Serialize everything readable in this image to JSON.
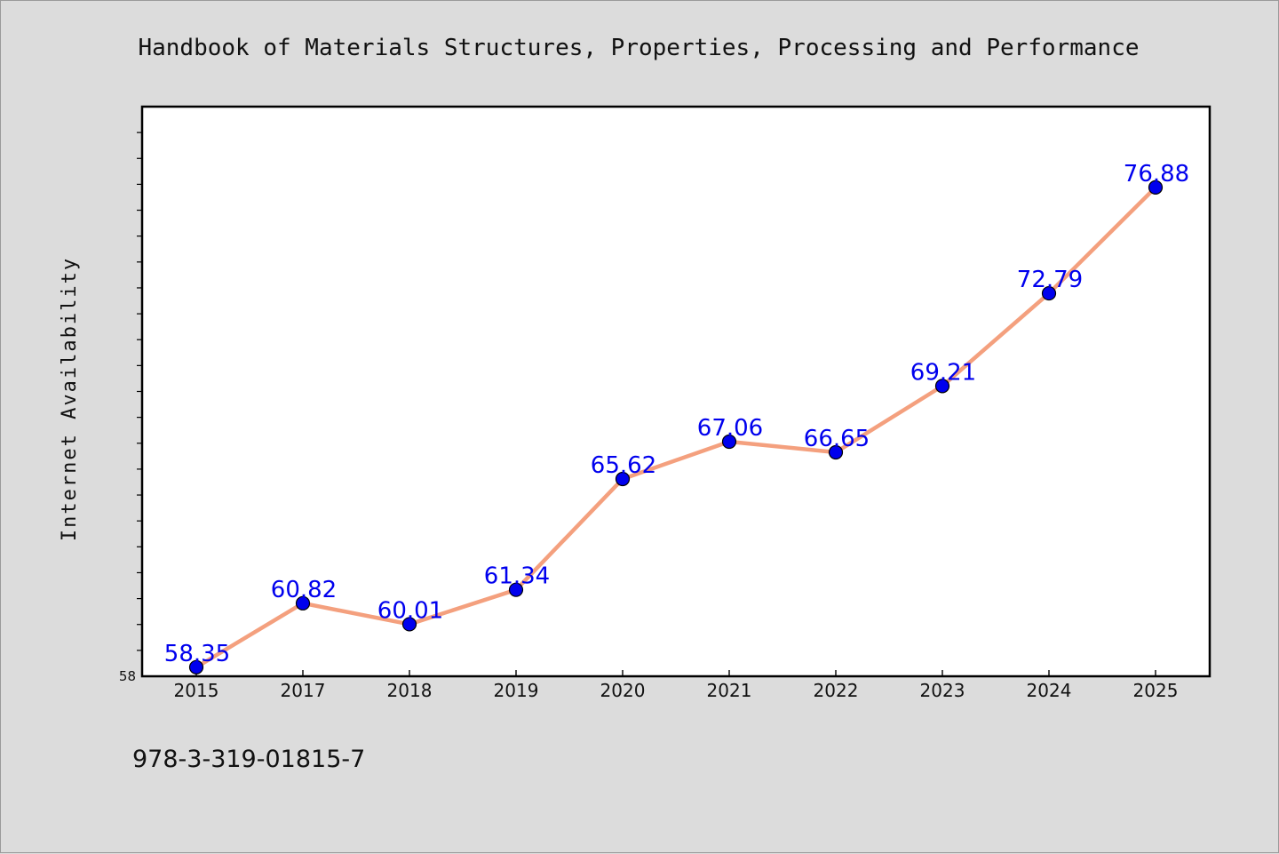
{
  "chart_data": {
    "type": "line",
    "title": "Handbook of Materials Structures, Properties, Processing and Performance",
    "xlabel": "",
    "ylabel": "Internet Availability",
    "categories": [
      "2015",
      "2017",
      "2018",
      "2019",
      "2020",
      "2021",
      "2022",
      "2023",
      "2024",
      "2025"
    ],
    "series": [
      {
        "values": [
          58.35,
          60.82,
          60.01,
          61.34,
          65.62,
          67.06,
          66.65,
          69.21,
          72.79,
          76.88
        ]
      }
    ],
    "ylim": [
      58,
      80
    ],
    "y_tick_labels": [
      "58"
    ],
    "grid": false,
    "legend": "none",
    "line_color": "#f4a07e",
    "marker_color": "#0000ee",
    "label_color": "#0000ee"
  },
  "footer": {
    "isbn": "978-3-319-01815-7"
  }
}
